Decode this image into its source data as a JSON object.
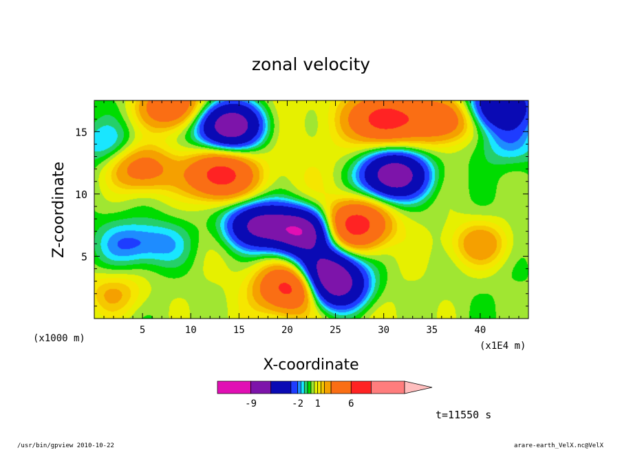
{
  "chart_data": {
    "type": "heatmap",
    "title": "zonal velocity",
    "xlabel": "X-coordinate",
    "ylabel": "Z-coordinate",
    "x_unit": "(x1E4 m)",
    "y_unit": "(x1000 m)",
    "xlim": [
      0,
      45
    ],
    "ylim": [
      0,
      17.5
    ],
    "x_ticks": [
      "5",
      "10",
      "15",
      "20",
      "25",
      "30",
      "35",
      "40"
    ],
    "y_ticks": [
      "5",
      "10",
      "15"
    ],
    "colorbar": {
      "levels": [
        -14,
        -9,
        -6,
        -3,
        -2,
        -1.5,
        -1,
        -0.5,
        0,
        0.5,
        1,
        1.5,
        2,
        3,
        6,
        9,
        14
      ],
      "colors": [
        "#e10fb4",
        "#7d14aa",
        "#0a0ab4",
        "#1e3cff",
        "#1e8cff",
        "#19e6ff",
        "#25cf6a",
        "#00dc00",
        "#a0e632",
        "#e6f000",
        "#f5e600",
        "#f5c800",
        "#f5a000",
        "#fa6e14",
        "#ff2323",
        "#ff7d7d"
      ],
      "overflow_color": "#ffbebe",
      "tick_labels": [
        "-9",
        "-2",
        "1",
        "6"
      ]
    },
    "features": [
      {
        "x": 14,
        "z": 15.5,
        "value": -9
      },
      {
        "x": 13,
        "z": 11.5,
        "value": 7
      },
      {
        "x": 17,
        "z": 7.5,
        "value": -7
      },
      {
        "x": 20.5,
        "z": 2.5,
        "value": 7
      },
      {
        "x": 21.5,
        "z": 7,
        "value": -9
      },
      {
        "x": 30,
        "z": 16,
        "value": 7
      },
      {
        "x": 31,
        "z": 11.5,
        "value": -9
      },
      {
        "x": 27,
        "z": 7.5,
        "value": 7
      },
      {
        "x": 25,
        "z": 2.5,
        "value": -7
      },
      {
        "x": 24,
        "z": 4,
        "value": -6
      },
      {
        "x": 5,
        "z": 12,
        "value": 4
      },
      {
        "x": 1,
        "z": 14,
        "value": -1.5
      },
      {
        "x": 43,
        "z": 14,
        "value": -1.5
      },
      {
        "x": 3.5,
        "z": 6,
        "value": -1.8
      },
      {
        "x": 7,
        "z": 6,
        "value": -1.5
      },
      {
        "x": 8,
        "z": 17,
        "value": 5
      },
      {
        "x": 36,
        "z": 16,
        "value": 5
      },
      {
        "x": 42,
        "z": 17,
        "value": -6
      },
      {
        "x": 2,
        "z": 2,
        "value": 2
      },
      {
        "x": 40,
        "z": 6,
        "value": 2.5
      }
    ]
  },
  "annotations": {
    "time": "t=11550 s",
    "footer_left": "/usr/bin/gpview   2010-10-22",
    "footer_right": "arare-earth_VelX.nc@VelX"
  }
}
